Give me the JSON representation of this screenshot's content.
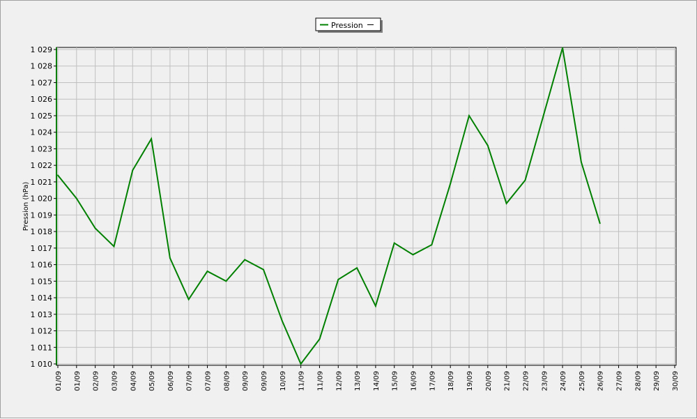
{
  "chart_data": {
    "type": "line",
    "title": "",
    "xlabel": "",
    "ylabel": "Pression (hPa)",
    "ylim": [
      1010,
      1029
    ],
    "grid": true,
    "legend_position": "top-center",
    "x": [
      "01/09",
      "01/09",
      "02/09",
      "03/09",
      "04/09",
      "05/09",
      "06/09",
      "07/09",
      "07/09",
      "08/09",
      "09/09",
      "09/09",
      "10/09",
      "11/09",
      "11/09",
      "12/09",
      "13/09",
      "14/09",
      "15/09",
      "16/09",
      "17/09",
      "18/09",
      "19/09",
      "20/09",
      "21/09",
      "22/09",
      "23/09",
      "24/09",
      "25/09",
      "26/09",
      "27/09",
      "28/09",
      "29/09",
      "30/09"
    ],
    "yticks": [
      "1 010",
      "1 011",
      "1 012",
      "1 013",
      "1 014",
      "1 015",
      "1 016",
      "1 017",
      "1 018",
      "1 019",
      "1 020",
      "1 021",
      "1 022",
      "1 023",
      "1 024",
      "1 025",
      "1 026",
      "1 027",
      "1 028",
      "1 029"
    ],
    "series": [
      {
        "name": "Pression",
        "color": "#008000",
        "points": [
          [
            0,
            1021.4
          ],
          [
            1,
            1020.0
          ],
          [
            2,
            1018.2
          ],
          [
            3,
            1017.1
          ],
          [
            4,
            1021.7
          ],
          [
            5,
            1023.6
          ],
          [
            6,
            1016.4
          ],
          [
            7,
            1013.9
          ],
          [
            8,
            1015.6
          ],
          [
            9,
            1015.0
          ],
          [
            10,
            1016.3
          ],
          [
            11,
            1015.7
          ],
          [
            12,
            1012.6
          ],
          [
            13,
            1010.0
          ],
          [
            14,
            1011.5
          ],
          [
            15,
            1015.1
          ],
          [
            16,
            1015.8
          ],
          [
            17,
            1013.5
          ],
          [
            18,
            1017.3
          ],
          [
            19,
            1016.6
          ],
          [
            20,
            1017.2
          ],
          [
            21,
            1020.9
          ],
          [
            22,
            1025.0
          ],
          [
            23,
            1023.2
          ],
          [
            24,
            1019.7
          ],
          [
            25,
            1021.1
          ],
          [
            26,
            1025.1
          ],
          [
            27,
            1029.1
          ],
          [
            28,
            1022.2
          ],
          [
            29,
            1018.5
          ]
        ]
      }
    ]
  }
}
